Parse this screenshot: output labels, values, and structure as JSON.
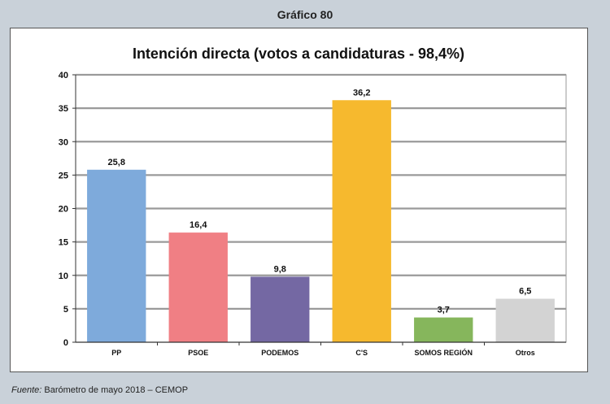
{
  "figure_title": "Gráfico 80",
  "source": {
    "label": "Fuente:",
    "text": "Barómetro de mayo 2018 – CEMOP"
  },
  "chart_data": {
    "type": "bar",
    "title": "Intención directa (votos a candidaturas - 98,4%)",
    "categories": [
      "PP",
      "PSOE",
      "PODEMOS",
      "C'S",
      "SOMOS REGIÓN",
      "Otros"
    ],
    "values": [
      25.8,
      16.4,
      9.8,
      36.2,
      3.7,
      6.5
    ],
    "value_labels": [
      "25,8",
      "16,4",
      "9,8",
      "36,2",
      "3,7",
      "6,5"
    ],
    "colors": [
      "#7eaadb",
      "#f07f84",
      "#7468a3",
      "#f6b92e",
      "#86b65c",
      "#d3d3d3"
    ],
    "ylim": [
      0,
      40
    ],
    "yticks": [
      0,
      5,
      10,
      15,
      20,
      25,
      30,
      35,
      40
    ],
    "xlabel": "",
    "ylabel": "",
    "grid": true,
    "legend": "none"
  }
}
